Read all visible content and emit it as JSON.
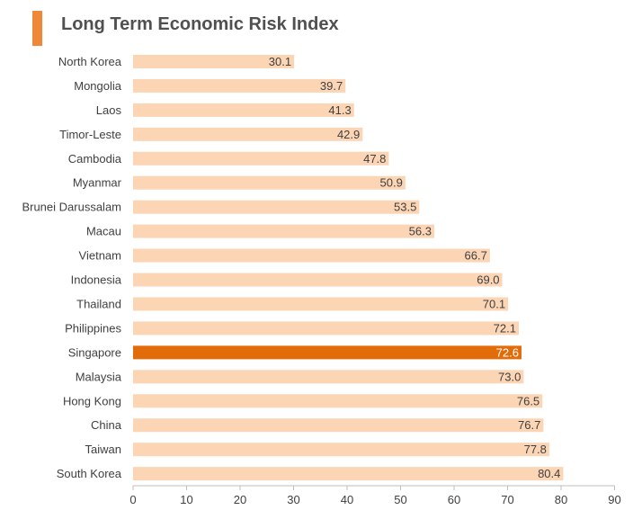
{
  "chart_data": {
    "type": "bar",
    "orientation": "horizontal",
    "title": "Long Term Economic Risk Index",
    "categories": [
      "North Korea",
      "Mongolia",
      "Laos",
      "Timor-Leste",
      "Cambodia",
      "Myanmar",
      "Brunei Darussalam",
      "Macau",
      "Vietnam",
      "Indonesia",
      "Thailand",
      "Philippines",
      "Singapore",
      "Malaysia",
      "Hong Kong",
      "China",
      "Taiwan",
      "South Korea"
    ],
    "values": [
      30.1,
      39.7,
      41.3,
      42.9,
      47.8,
      50.9,
      53.5,
      56.3,
      66.7,
      69.0,
      70.1,
      72.1,
      72.6,
      73.0,
      76.5,
      76.7,
      77.8,
      80.4
    ],
    "value_labels": [
      "30.1",
      "39.7",
      "41.3",
      "42.9",
      "47.8",
      "50.9",
      "53.5",
      "56.3",
      "66.7",
      "69.0",
      "70.1",
      "72.1",
      "72.6",
      "73.0",
      "76.5",
      "76.7",
      "77.8",
      "80.4"
    ],
    "highlight": "Singapore",
    "xlim": [
      0,
      90
    ],
    "xticks": [
      "0",
      "10",
      "20",
      "30",
      "40",
      "50",
      "60",
      "70",
      "80",
      "90"
    ],
    "grid": false,
    "colors": {
      "bar": "#fcd5b5",
      "highlight": "#e36c0a",
      "label": "#404040",
      "highlight_label": "#ffffff",
      "accent": "#f0883a"
    }
  }
}
